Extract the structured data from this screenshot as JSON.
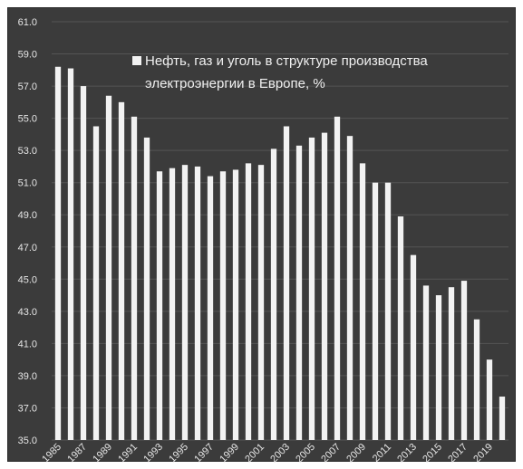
{
  "chart_data": {
    "type": "bar",
    "title": "",
    "legend": {
      "entries": [
        "Нефть, газ и уголь в структуре производства электроэнергии в Европе, %"
      ],
      "line1": "Нефть, газ и уголь в структуре производства",
      "line2": "электроэнергии в Европе, %",
      "placement": "top-center"
    },
    "categories": [
      "1985",
      "1986",
      "1987",
      "1988",
      "1989",
      "1990",
      "1991",
      "1992",
      "1993",
      "1994",
      "1995",
      "1996",
      "1997",
      "1998",
      "1999",
      "2000",
      "2001",
      "2002",
      "2003",
      "2004",
      "2005",
      "2006",
      "2007",
      "2008",
      "2009",
      "2010",
      "2011",
      "2012",
      "2013",
      "2014",
      "2015",
      "2016",
      "2017",
      "2018",
      "2019",
      "2020"
    ],
    "x_tick_labels": [
      "1985",
      "1987",
      "1989",
      "1991",
      "1993",
      "1995",
      "1997",
      "1999",
      "2001",
      "2003",
      "2005",
      "2007",
      "2009",
      "2011",
      "2013",
      "2015",
      "2017",
      "2019"
    ],
    "series": [
      {
        "name": "Нефть, газ и уголь в структуре производства электроэнергии в Европе, %",
        "values": [
          58.2,
          58.1,
          57.0,
          54.5,
          56.4,
          56.0,
          55.1,
          53.8,
          51.7,
          51.9,
          52.1,
          52.0,
          51.4,
          51.7,
          51.8,
          52.2,
          52.1,
          53.1,
          54.5,
          53.3,
          53.8,
          54.1,
          55.1,
          53.9,
          52.2,
          51.0,
          51.0,
          48.9,
          46.5,
          44.6,
          44.0,
          44.5,
          44.9,
          42.5,
          40.0,
          37.7
        ]
      }
    ],
    "ylim": [
      35.0,
      61.0
    ],
    "y_tick_labels": [
      "35.0",
      "37.0",
      "39.0",
      "41.0",
      "43.0",
      "45.0",
      "47.0",
      "49.0",
      "51.0",
      "53.0",
      "55.0",
      "57.0",
      "59.0",
      "61.0"
    ],
    "grid": true,
    "colors": {
      "background": "#3b3b3b",
      "bars": "#f2f2f2",
      "text": "#e6e6e6",
      "grid": "#555555"
    },
    "xlabel": "",
    "ylabel": ""
  }
}
